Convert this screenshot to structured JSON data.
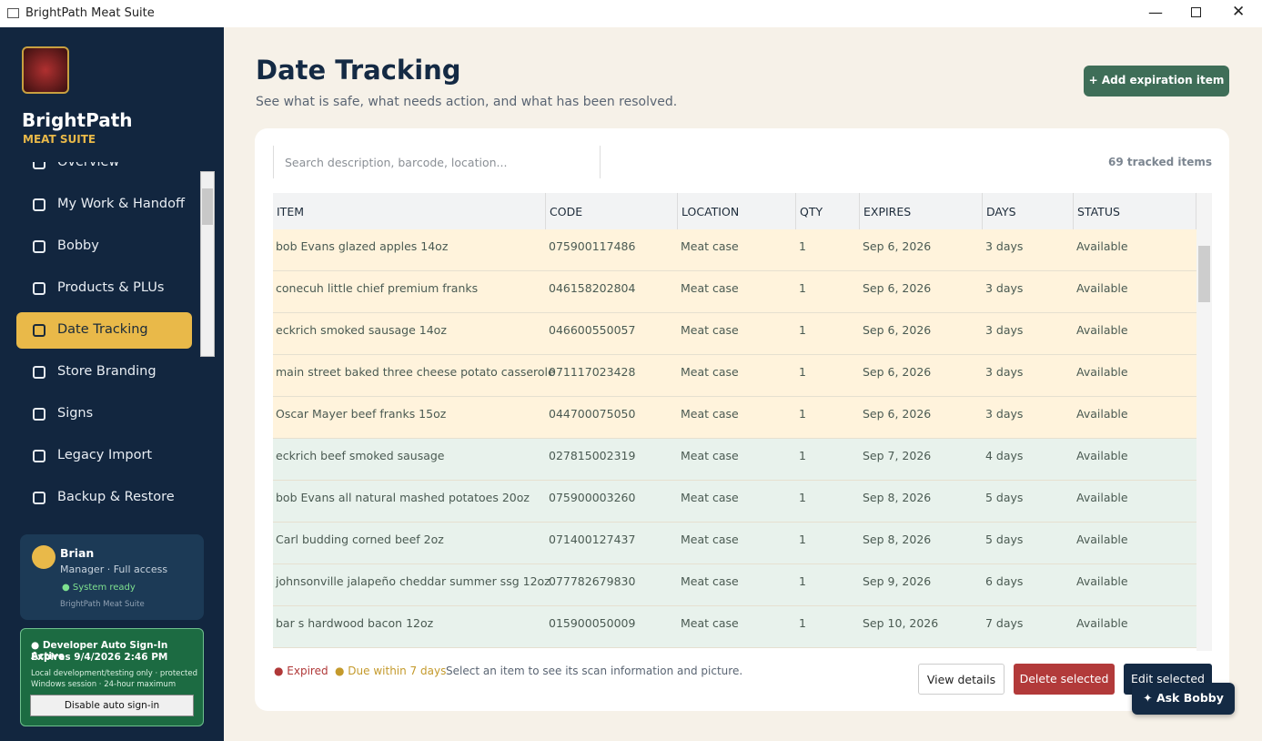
{
  "window": {
    "title": "BrightPath Meat Suite"
  },
  "sidebar": {
    "brand": "BrightPath",
    "subbrand": "MEAT SUITE",
    "nav": [
      "Overview",
      "My Work & Handoff",
      "Bobby",
      "Products & PLUs",
      "Date Tracking",
      "Store Branding",
      "Signs",
      "Legacy Import",
      "Backup & Restore"
    ],
    "active": 4,
    "user": {
      "name": "Brian",
      "role": "Manager · Full access",
      "status": "System ready",
      "app": "BrightPath Meat Suite"
    },
    "dev": {
      "heading": "Developer Auto Sign-In Active",
      "expires": "Expires 9/4/2026 2:46 PM",
      "note": "Local development/testing only · protected Windows session · 24-hour maximum",
      "button": "Disable auto sign-in"
    }
  },
  "header": {
    "title": "Date Tracking",
    "subtitle": "See what is safe, what needs action, and what has been resolved.",
    "add_button": "+ Add expiration item"
  },
  "toolbar": {
    "search_placeholder": "Search description, barcode, location...",
    "count": "69 tracked items"
  },
  "table": {
    "columns": [
      "ITEM",
      "CODE",
      "LOCATION",
      "QTY",
      "EXPIRES",
      "DAYS",
      "STATUS"
    ],
    "rows": [
      [
        "bob Evans glazed apples 14oz",
        "075900117486",
        "Meat case",
        "1",
        "Sep 6, 2026",
        "3 days",
        "Available"
      ],
      [
        "conecuh little chief premium franks",
        "046158202804",
        "Meat case",
        "1",
        "Sep 6, 2026",
        "3 days",
        "Available"
      ],
      [
        "eckrich smoked sausage 14oz",
        "046600550057",
        "Meat case",
        "1",
        "Sep 6, 2026",
        "3 days",
        "Available"
      ],
      [
        "main street baked three cheese potato casserole",
        "071117023428",
        "Meat case",
        "1",
        "Sep 6, 2026",
        "3 days",
        "Available"
      ],
      [
        "Oscar Mayer beef franks 15oz",
        "044700075050",
        "Meat case",
        "1",
        "Sep 6, 2026",
        "3 days",
        "Available"
      ],
      [
        "eckrich beef smoked sausage",
        "027815002319",
        "Meat case",
        "1",
        "Sep 7, 2026",
        "4 days",
        "Available"
      ],
      [
        "bob Evans all natural mashed potatoes 20oz",
        "075900003260",
        "Meat case",
        "1",
        "Sep 8, 2026",
        "5 days",
        "Available"
      ],
      [
        "Carl budding corned beef 2oz",
        "071400127437",
        "Meat case",
        "1",
        "Sep 8, 2026",
        "5 days",
        "Available"
      ],
      [
        "johnsonville jalapeño cheddar summer ssg 12oz",
        "077782679830",
        "Meat case",
        "1",
        "Sep 9, 2026",
        "6 days",
        "Available"
      ],
      [
        "bar s hardwood bacon 12oz",
        "015900050009",
        "Meat case",
        "1",
        "Sep 10, 2026",
        "7 days",
        "Available"
      ]
    ],
    "row_colors": [
      "#fff3dc",
      "#fff3dc",
      "#fff3dc",
      "#fff3dc",
      "#fff3dc",
      "#e8f2ec",
      "#e8f2ec",
      "#e8f2ec",
      "#e8f2ec",
      "#e8f2ec"
    ]
  },
  "footer": {
    "legend_expired": "Expired",
    "legend_due": "Due within 7 days",
    "hint": "Select an item to see its scan information and picture.",
    "view": "View details",
    "delete": "Delete selected",
    "edit": "Edit selected",
    "ask": "Ask Bobby"
  }
}
